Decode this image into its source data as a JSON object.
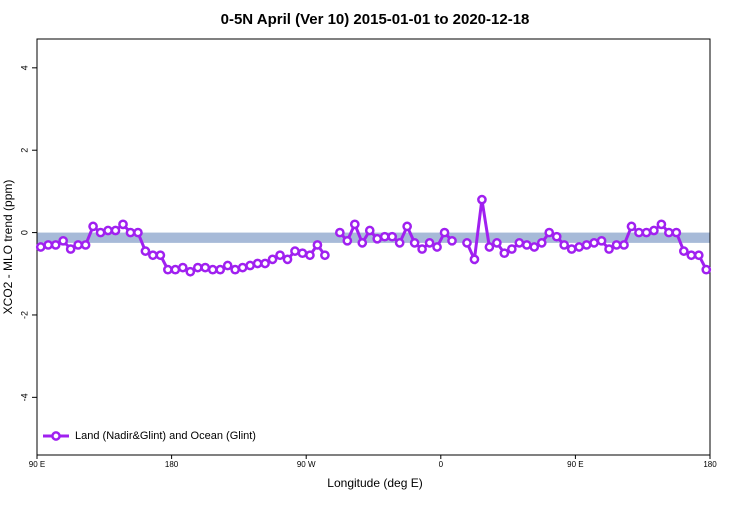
{
  "chart_data": {
    "type": "line",
    "title": "0-5N April (Ver 10)   2015-01-01 to 2020-12-18",
    "x_label": "Longitude (deg E)",
    "y_label": "XCO2 - MLO trend (ppm)",
    "x": [
      92.5,
      97.5,
      102.5,
      107.5,
      112.5,
      117.5,
      122.5,
      127.5,
      132.5,
      137.5,
      142.5,
      147.5,
      152.5,
      157.5,
      162.5,
      167.5,
      172.5,
      177.5,
      182.5,
      187.5,
      192.5,
      197.5,
      202.5,
      207.5,
      212.5,
      217.5,
      222.5,
      227.5,
      232.5,
      237.5,
      242.5,
      247.5,
      252.5,
      257.5,
      262.5,
      267.5,
      272.5,
      277.5,
      282.5,
      287.5,
      292.5,
      297.5,
      302.5,
      307.5,
      312.5,
      317.5,
      322.5,
      327.5,
      332.5,
      337.5,
      342.5,
      347.5,
      352.5,
      357.5,
      362.5,
      367.5,
      372.5,
      377.5,
      382.5,
      387.5,
      392.5,
      397.5,
      402.5,
      407.5,
      412.5,
      417.5,
      422.5,
      427.5,
      432.5,
      437.5,
      442.5,
      447.5,
      452.5,
      457.5,
      462.5,
      467.5,
      472.5,
      477.5,
      482.5,
      487.5,
      492.5,
      497.5,
      502.5,
      507.5,
      512.5,
      517.5,
      522.5,
      527.5,
      532.5,
      537.5
    ],
    "series": [
      {
        "name": "Land (Nadir&Glint) and Ocean (Glint)",
        "color": "#a020f0",
        "values": [
          -0.35,
          -0.3,
          -0.3,
          -0.2,
          -0.4,
          -0.3,
          -0.3,
          0.15,
          0.0,
          0.05,
          0.05,
          0.2,
          0.0,
          0.0,
          -0.45,
          -0.55,
          -0.55,
          -0.9,
          -0.9,
          -0.85,
          -0.95,
          -0.85,
          -0.85,
          -0.9,
          -0.9,
          -0.8,
          -0.9,
          -0.85,
          -0.8,
          -0.75,
          -0.75,
          -0.65,
          -0.55,
          -0.65,
          -0.45,
          -0.5,
          -0.55,
          -0.3,
          -0.55,
          null,
          0.0,
          -0.2,
          0.2,
          -0.25,
          0.05,
          -0.15,
          -0.1,
          -0.1,
          -0.25,
          0.15,
          -0.25,
          -0.4,
          -0.25,
          -0.35,
          0.0,
          -0.2,
          null,
          -0.25,
          -0.65,
          0.8,
          -0.35,
          -0.25,
          -0.5,
          -0.4,
          -0.25,
          -0.3,
          -0.35,
          -0.25,
          0.0,
          -0.1,
          -0.3,
          -0.4,
          -0.35,
          -0.3,
          -0.25,
          -0.2,
          -0.4,
          -0.3,
          -0.3,
          0.15,
          0.0,
          0.0,
          0.05,
          0.2,
          0.0,
          0.0,
          -0.45,
          -0.55,
          -0.55,
          -0.9
        ]
      }
    ],
    "reference_band": [
      -0.25,
      0.0
    ],
    "band_color": "#a7bad8",
    "xlim": [
      90,
      540
    ],
    "xticks": [
      {
        "value": 90,
        "label": "90 E"
      },
      180,
      {
        "value": 270,
        "label": "90 W"
      },
      {
        "value": 360,
        "label": "0"
      },
      {
        "value": 450,
        "label": "90 E"
      },
      {
        "value": 540,
        "label": "180"
      }
    ],
    "ylim": [
      -5.4,
      4.7
    ],
    "yticks": [
      4,
      2,
      0,
      -2,
      -4
    ],
    "legend": "bottom-left"
  }
}
